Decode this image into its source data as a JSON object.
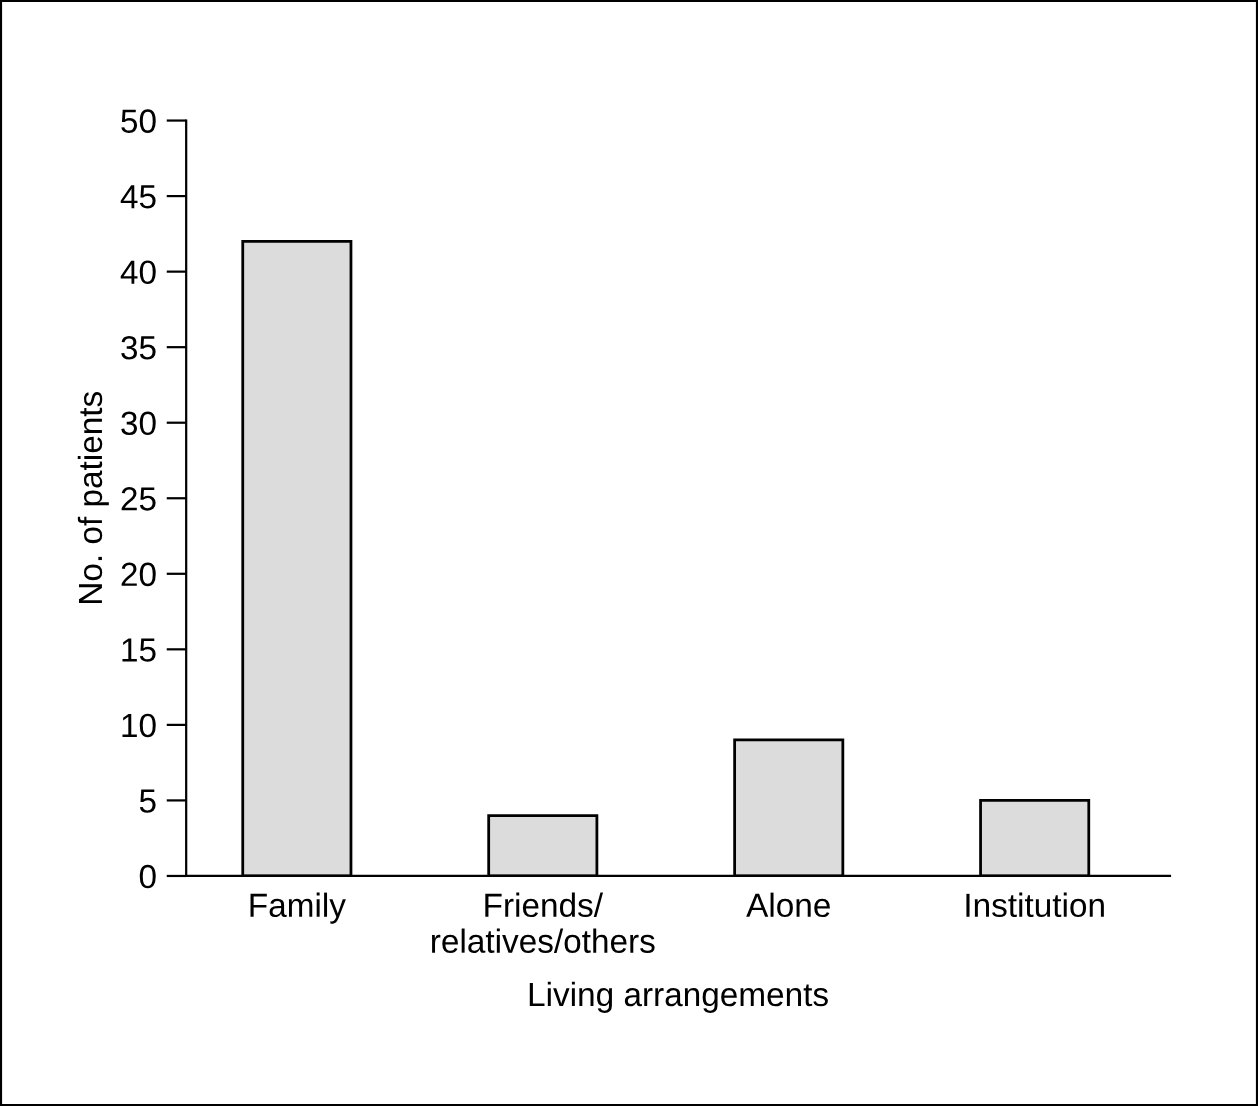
{
  "chart_data": {
    "type": "bar",
    "xlabel": "Living arrangements",
    "ylabel": "No. of patients",
    "categories": [
      "Family",
      "Friends/\nrelatives/others",
      "Alone",
      "Institution"
    ],
    "values": [
      42,
      4,
      9,
      5
    ],
    "color": "#dcdcdc",
    "ylim": [
      0,
      50
    ],
    "yticks": [
      0,
      5,
      10,
      15,
      20,
      25,
      30,
      35,
      40,
      45,
      50
    ],
    "grid": false,
    "legend": false
  }
}
